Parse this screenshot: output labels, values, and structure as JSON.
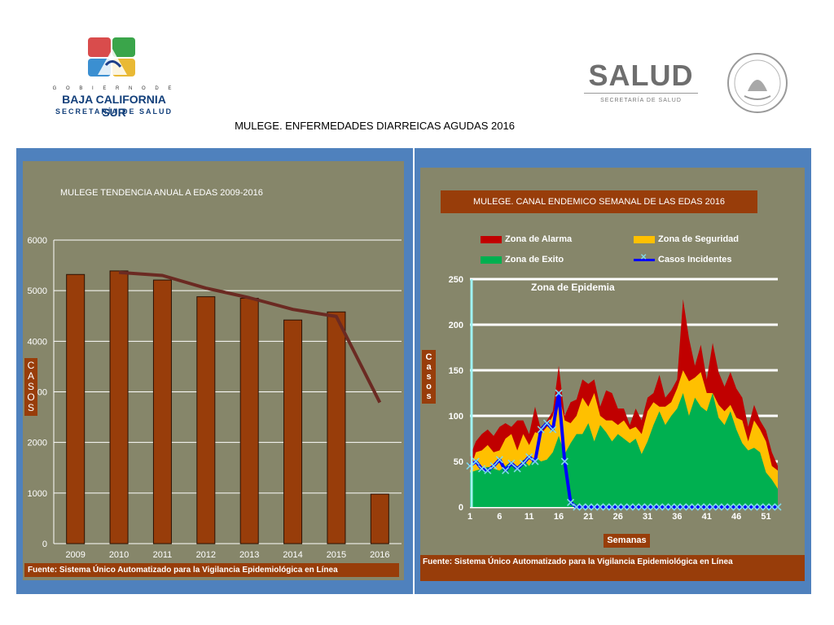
{
  "header": {
    "gov_line": "G O B I E R N O   D E",
    "state_name": "BAJA CALIFORNIA SUR",
    "secretariat": "SECRETARÍA DE SALUD",
    "salud_word": "SALUD",
    "salud_sub": "SECRETARÍA DE SALUD",
    "page_title": "MULEGE. ENFERMEDADES DIARREICAS  AGUDAS 2016"
  },
  "colors": {
    "panel_bg": "#86866a",
    "frame": "#4f81bd",
    "bar": "#983d0a",
    "trend": "#6b2a22",
    "alarma": "#c00000",
    "seguridad": "#ffc000",
    "exito": "#00b050",
    "casos": "#0000ff",
    "casos_marker": "#7fd8e8"
  },
  "left_panel": {
    "source": "Fuente: Sistema Único Automatizado para la Vigilancia Epidemiológica en Línea"
  },
  "right_panel": {
    "source": "Fuente: Sistema Único Automatizado para la Vigilancia Epidemiológica en Línea",
    "zone_label": "Zona de Epidemia",
    "legend": {
      "alarma": "Zona de Alarma",
      "seguridad": "Zona de Seguridad",
      "exito": "Zona de Exito",
      "casos": "Casos Incidentes"
    }
  },
  "chart_data": [
    {
      "type": "bar",
      "title": "MULEGE TENDENCIA ANUAL A EDAS 2009-2016",
      "ylabel": "CASOS",
      "xlabel": "",
      "categories": [
        "2009",
        "2010",
        "2011",
        "2012",
        "2013",
        "2014",
        "2015",
        "2016"
      ],
      "values": [
        5320,
        5390,
        5210,
        4880,
        4850,
        4420,
        4580,
        980
      ],
      "trend_line": {
        "x": [
          "2010",
          "2011",
          "2012",
          "2013",
          "2014",
          "2015",
          "2016"
        ],
        "values": [
          5360,
          5300,
          5050,
          4860,
          4630,
          4490,
          2790
        ]
      },
      "ylim": [
        0,
        6000
      ],
      "yticks": [
        0,
        1000,
        2000,
        3000,
        4000,
        5000,
        6000
      ],
      "grid": true,
      "legend": "none"
    },
    {
      "type": "area",
      "title": "MULEGE. CANAL ENDEMICO SEMANAL DE LAS EDAS 2016",
      "xlabel": "Semanas",
      "ylabel": "Casos",
      "x": [
        1,
        2,
        3,
        4,
        5,
        6,
        7,
        8,
        9,
        10,
        11,
        12,
        13,
        14,
        15,
        16,
        17,
        18,
        19,
        20,
        21,
        22,
        23,
        24,
        25,
        26,
        27,
        28,
        29,
        30,
        31,
        32,
        33,
        34,
        35,
        36,
        37,
        38,
        39,
        40,
        41,
        42,
        43,
        44,
        45,
        46,
        47,
        48,
        49,
        50,
        51,
        52,
        53
      ],
      "xticks": [
        1,
        6,
        11,
        16,
        21,
        26,
        31,
        36,
        41,
        46,
        51
      ],
      "ylim": [
        0,
        250
      ],
      "yticks": [
        0,
        50,
        100,
        150,
        200,
        250
      ],
      "grid": true,
      "legend": "top",
      "series": [
        {
          "name": "Zona de Alarma",
          "values": [
            55,
            72,
            80,
            85,
            78,
            88,
            92,
            88,
            95,
            95,
            80,
            110,
            85,
            95,
            105,
            155,
            100,
            115,
            118,
            140,
            135,
            140,
            110,
            128,
            125,
            108,
            108,
            90,
            108,
            95,
            120,
            125,
            145,
            120,
            128,
            140,
            228,
            185,
            155,
            178,
            140,
            180,
            148,
            132,
            148,
            130,
            120,
            88,
            112,
            95,
            84,
            60,
            45
          ]
        },
        {
          "name": "Zona de Seguridad",
          "values": [
            40,
            60,
            62,
            68,
            60,
            62,
            75,
            80,
            62,
            80,
            68,
            82,
            80,
            88,
            100,
            125,
            95,
            92,
            100,
            120,
            110,
            125,
            100,
            95,
            95,
            90,
            95,
            85,
            88,
            80,
            105,
            115,
            110,
            110,
            115,
            130,
            150,
            138,
            142,
            148,
            125,
            125,
            112,
            105,
            112,
            98,
            95,
            72,
            95,
            85,
            72,
            45,
            40
          ]
        },
        {
          "name": "Zona de Exito",
          "values": [
            38,
            40,
            42,
            44,
            42,
            40,
            45,
            50,
            42,
            52,
            45,
            55,
            50,
            52,
            60,
            78,
            58,
            70,
            80,
            80,
            92,
            72,
            90,
            82,
            72,
            80,
            75,
            70,
            75,
            58,
            72,
            90,
            105,
            90,
            100,
            108,
            125,
            100,
            120,
            110,
            105,
            125,
            98,
            90,
            105,
            85,
            70,
            62,
            65,
            60,
            38,
            30,
            20
          ]
        },
        {
          "name": "Casos Incidentes",
          "values": [
            45,
            50,
            42,
            40,
            45,
            52,
            40,
            48,
            42,
            48,
            55,
            50,
            85,
            92,
            85,
            125,
            50,
            5,
            0,
            0,
            0,
            0,
            0,
            0,
            0,
            0,
            0,
            0,
            0,
            0,
            0,
            0,
            0,
            0,
            0,
            0,
            0,
            0,
            0,
            0,
            0,
            0,
            0,
            0,
            0,
            0,
            0,
            0,
            0,
            0,
            0,
            0,
            0
          ]
        }
      ]
    }
  ]
}
